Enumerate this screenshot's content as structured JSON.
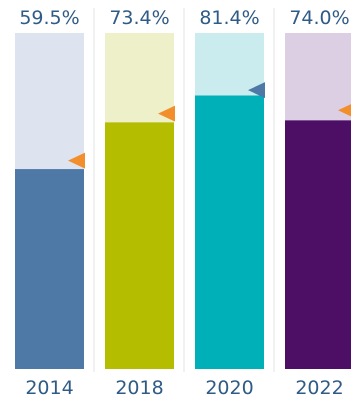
{
  "chart_data": {
    "type": "bar",
    "title": "",
    "xlabel": "",
    "ylabel": "",
    "ylim": [
      0,
      100
    ],
    "grid": false,
    "categories": [
      "2014",
      "2018",
      "2020",
      "2022"
    ],
    "values": [
      59.5,
      73.4,
      81.4,
      74.0
    ],
    "value_labels": [
      "59.5%",
      "73.4%",
      "81.4%",
      "74.0%"
    ],
    "marker_values": [
      62,
      76,
      83,
      77
    ],
    "colors": {
      "fills": [
        "#4e79a7",
        "#b5bd00",
        "#00b0b9",
        "#4d0f66"
      ],
      "tracks": [
        "#dde3ef",
        "#eef0ca",
        "#caecef",
        "#dccfe3"
      ],
      "markers": [
        "#f28e2b",
        "#f28e2b",
        "#4e79a7",
        "#f28e2b"
      ],
      "label_text": "#2f5b86",
      "separator": "#e3e3e3"
    }
  }
}
